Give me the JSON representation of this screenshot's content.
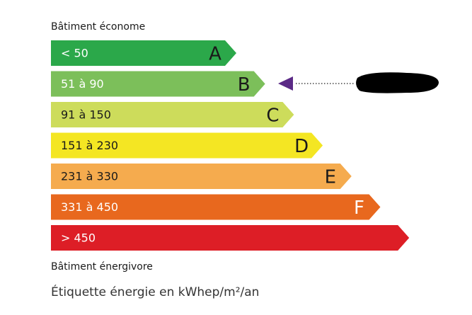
{
  "header": "Bâtiment économe",
  "bands": [
    {
      "range": "< 50",
      "letter": "A",
      "color": "#2ba84a",
      "text_color": "#ffffff",
      "letter_color": "#1a1a1a"
    },
    {
      "range": "51 à 90",
      "letter": "B",
      "color": "#7cbf5a",
      "text_color": "#ffffff",
      "letter_color": "#1a1a1a"
    },
    {
      "range": "91 à 150",
      "letter": "C",
      "color": "#cddc5b",
      "text_color": "#1a1a1a",
      "letter_color": "#1a1a1a"
    },
    {
      "range": "151 à 230",
      "letter": "D",
      "color": "#f4e623",
      "text_color": "#1a1a1a",
      "letter_color": "#1a1a1a"
    },
    {
      "range": "231 à 330",
      "letter": "E",
      "color": "#f5ab4e",
      "text_color": "#1a1a1a",
      "letter_color": "#1a1a1a"
    },
    {
      "range": "331 à 450",
      "letter": "F",
      "color": "#e8681e",
      "text_color": "#ffffff",
      "letter_color": "#ffffff"
    },
    {
      "range": "> 450",
      "letter": null,
      "color": "#dd1e26",
      "text_color": "#ffffff",
      "letter_color": "#ffffff"
    }
  ],
  "footer": "Bâtiment énergivore",
  "caption": "Étiquette énergie en kWhep/m²/an"
}
